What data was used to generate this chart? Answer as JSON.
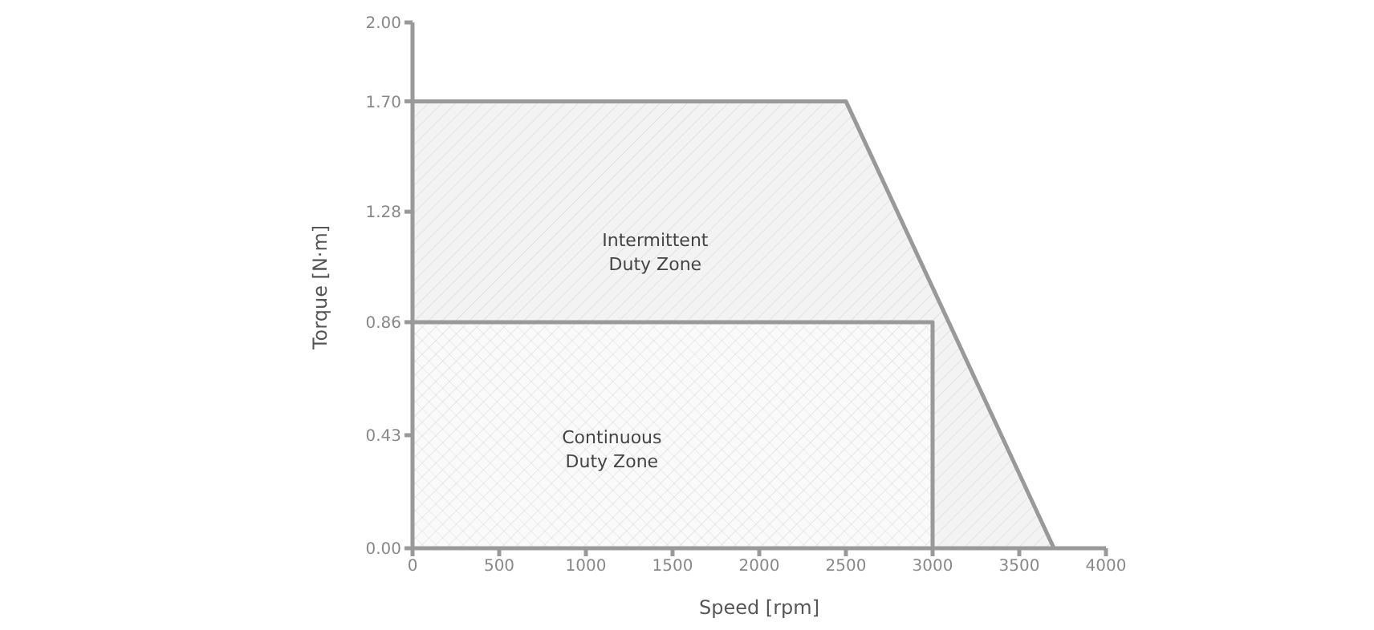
{
  "chart_data": {
    "type": "area",
    "xlabel": "Speed [rpm]",
    "ylabel": "Torque [N·m]",
    "series": [
      {
        "color": "#999999",
        "x": [
          0,
          2500,
          3700
        ],
        "values": [
          1.7,
          1.7,
          0
        ]
      },
      {
        "color": "#999999",
        "x": [
          0,
          3000,
          3000
        ],
        "values": [
          0.86,
          0.86,
          0
        ]
      }
    ],
    "xlim": [
      0,
      4000
    ],
    "xticks": [
      0,
      500,
      1000,
      1500,
      2000,
      2500,
      3000,
      3500,
      4000
    ],
    "ylim": [
      0,
      2
    ],
    "yticks": [
      {
        "value": 0,
        "label": "0.00"
      },
      {
        "value": 0.43,
        "label": "0.43"
      },
      {
        "value": 0.86,
        "label": "0.86"
      },
      {
        "value": 1.28,
        "label": "1.28"
      },
      {
        "value": 1.7,
        "label": "1.70"
      },
      {
        "value": 2,
        "label": "2.00"
      }
    ],
    "annotations": [
      "Intermittent\nDuty Zone",
      "Continuous\nDuty Zone"
    ],
    "grid": false,
    "legend": false
  }
}
